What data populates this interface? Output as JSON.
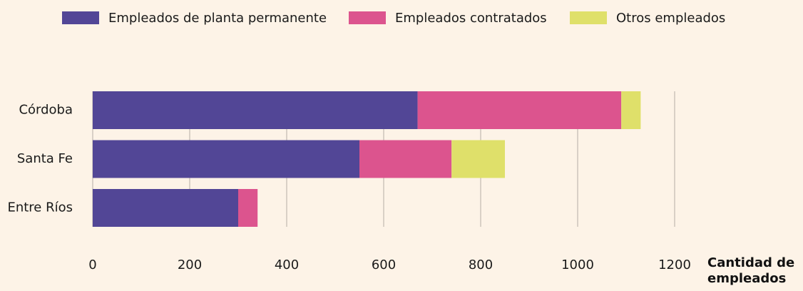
{
  "chart_data": {
    "type": "stacked_barh",
    "categories": [
      "Córdoba",
      "Santa Fe",
      "Entre Ríos"
    ],
    "series": [
      {
        "name": "Empleados de planta permanente",
        "color": "#524696",
        "values": [
          670,
          550,
          300
        ]
      },
      {
        "name": "Empleados contratados",
        "color": "#dc548e",
        "values": [
          420,
          190,
          40
        ]
      },
      {
        "name": "Otros empleados",
        "color": "#dfe06a",
        "values": [
          40,
          110,
          0
        ]
      }
    ],
    "x_label": "Cantidad de empleados",
    "xlim": [
      0,
      1200
    ],
    "xticks": [
      0,
      200,
      400,
      600,
      800,
      1000,
      1200
    ],
    "grid": true,
    "legend": "top"
  }
}
